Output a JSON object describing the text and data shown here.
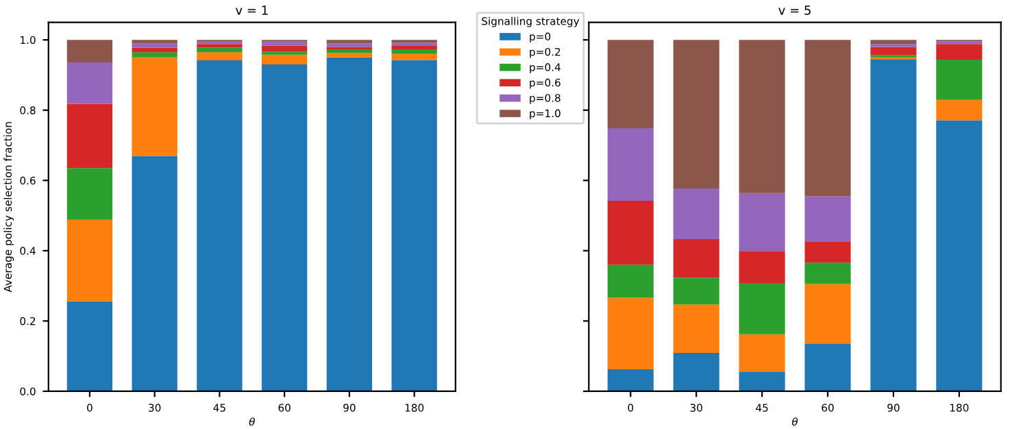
{
  "chart_data": [
    {
      "type": "bar",
      "stacked": true,
      "title": "v = 1",
      "xlabel": "θ",
      "ylabel": "Average policy selection fraction",
      "categories": [
        "0",
        "30",
        "45",
        "60",
        "90",
        "180"
      ],
      "ylim": [
        0,
        1.05
      ],
      "yticks": [
        {
          "value": 0,
          "label": "0.0"
        },
        {
          "value": 0.2,
          "label": "0.2"
        },
        {
          "value": 0.4,
          "label": "0.4"
        },
        {
          "value": 0.6,
          "label": "0.6"
        },
        {
          "value": 0.8,
          "label": "0.8"
        },
        {
          "value": 1.0,
          "label": "1.0"
        }
      ],
      "legend": "right",
      "legend_title": "Signalling strategy",
      "grid": false,
      "series": [
        {
          "name": "p=0",
          "color": "#1f77b4",
          "values": [
            0.256,
            0.67,
            0.942,
            0.93,
            0.95,
            0.943
          ]
        },
        {
          "name": "p=0.2",
          "color": "#ff7f0e",
          "values": [
            0.232,
            0.28,
            0.023,
            0.028,
            0.013,
            0.017
          ]
        },
        {
          "name": "p=0.4",
          "color": "#2ca02c",
          "values": [
            0.147,
            0.015,
            0.013,
            0.008,
            0.01,
            0.013
          ]
        },
        {
          "name": "p=0.6",
          "color": "#d62728",
          "values": [
            0.183,
            0.013,
            0.01,
            0.018,
            0.007,
            0.01
          ]
        },
        {
          "name": "p=0.8",
          "color": "#9467bd",
          "values": [
            0.118,
            0.012,
            0.007,
            0.011,
            0.01,
            0.009
          ]
        },
        {
          "name": "p=1.0",
          "color": "#8c564b",
          "values": [
            0.064,
            0.01,
            0.005,
            0.005,
            0.01,
            0.008
          ]
        }
      ]
    },
    {
      "type": "bar",
      "stacked": true,
      "title": "v = 5",
      "xlabel": "θ",
      "categories": [
        "0",
        "30",
        "45",
        "60",
        "90",
        "180"
      ],
      "ylim": [
        0,
        1.05
      ],
      "yticks": [
        {
          "value": 0,
          "label": null
        },
        {
          "value": 0.2,
          "label": null
        },
        {
          "value": 0.4,
          "label": null
        },
        {
          "value": 0.6,
          "label": null
        },
        {
          "value": 0.8,
          "label": null
        },
        {
          "value": 1.0,
          "label": null
        }
      ],
      "tick_labels": "x",
      "grid": false,
      "series": [
        {
          "color": "#1f77b4",
          "values": [
            0.062,
            0.109,
            0.056,
            0.136,
            0.944,
            0.771
          ]
        },
        {
          "color": "#ff7f0e",
          "values": [
            0.204,
            0.138,
            0.106,
            0.169,
            0.006,
            0.058
          ]
        },
        {
          "color": "#2ca02c",
          "values": [
            0.094,
            0.076,
            0.146,
            0.061,
            0.007,
            0.115
          ]
        },
        {
          "color": "#d62728",
          "values": [
            0.182,
            0.11,
            0.091,
            0.059,
            0.023,
            0.044
          ]
        },
        {
          "color": "#9467bd",
          "values": [
            0.207,
            0.144,
            0.165,
            0.13,
            0.008,
            0.008
          ]
        },
        {
          "color": "#8c564b",
          "values": [
            0.251,
            0.423,
            0.436,
            0.445,
            0.012,
            0.004
          ]
        }
      ]
    }
  ]
}
